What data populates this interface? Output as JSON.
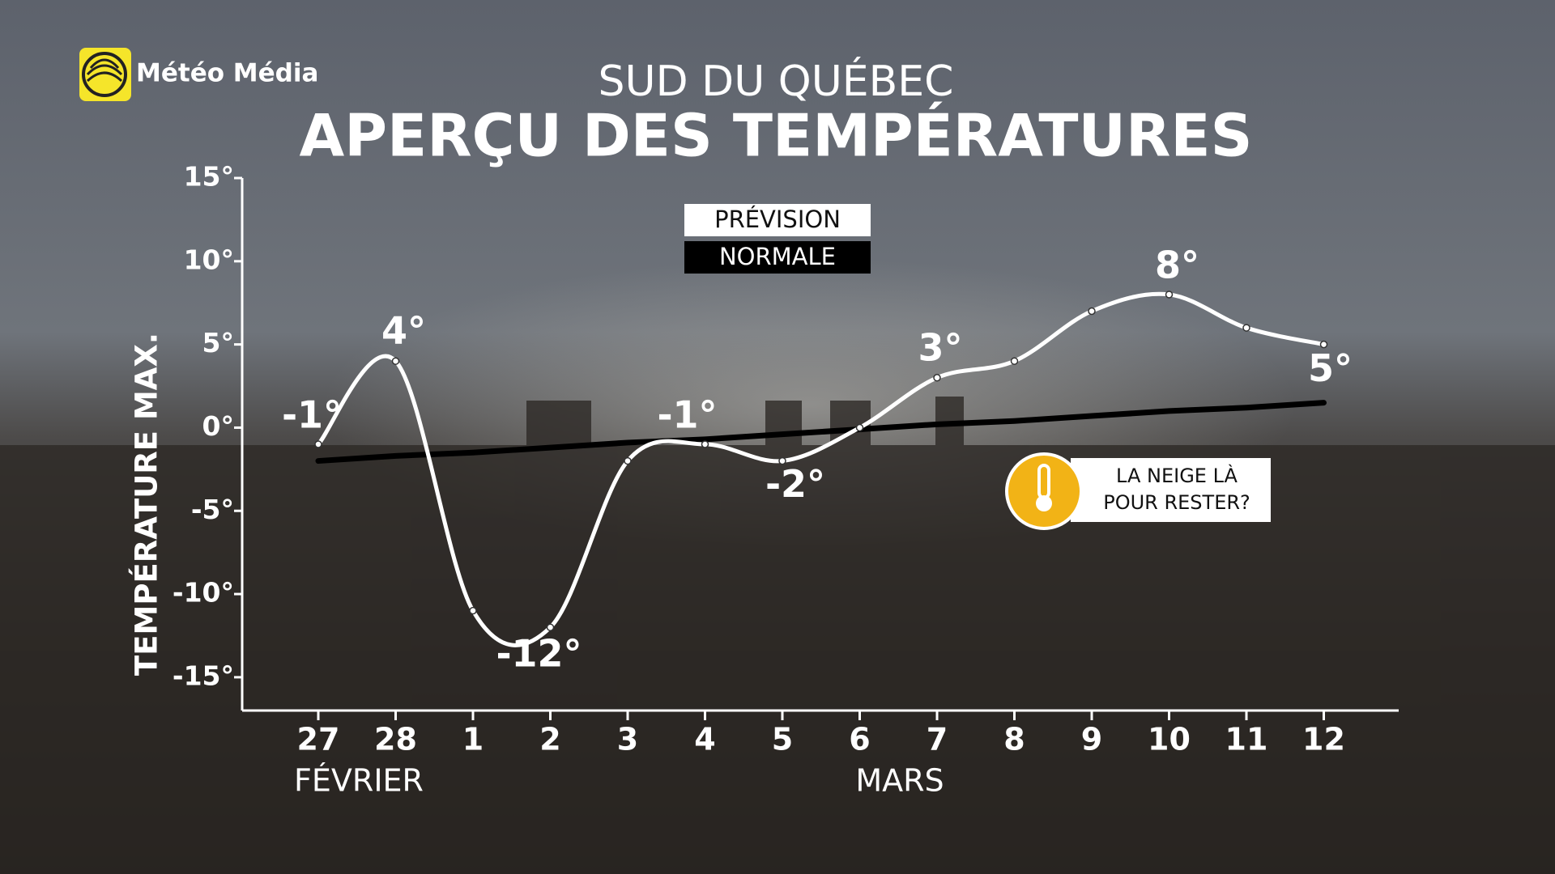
{
  "chart_data": {
    "type": "line",
    "brand": "Météo Média",
    "subtitle": "SUD DU QUÉBEC",
    "title": "APERÇU DES TEMPÉRATURES",
    "y_label": "TEMPÉRATURE MAX.",
    "categories": [
      "27",
      "28",
      "1",
      "2",
      "3",
      "4",
      "5",
      "6",
      "7",
      "8",
      "9",
      "10",
      "11",
      "12"
    ],
    "month_labels": [
      "FÉVRIER",
      "MARS"
    ],
    "series": [
      {
        "name": "PRÉVISION",
        "color": "#ffffff",
        "values": [
          -1,
          4,
          -11,
          -12,
          -2,
          -1,
          -2,
          0,
          3,
          4,
          7,
          8,
          6,
          5
        ],
        "value_labels": [
          "-1°",
          "4°",
          null,
          "-12°",
          null,
          "-1°",
          "-2°",
          null,
          "3°",
          null,
          null,
          "8°",
          null,
          "5°"
        ]
      },
      {
        "name": "NORMALE",
        "color": "#000000",
        "values": [
          -2,
          -1.7,
          -1.5,
          -1.2,
          -0.9,
          -0.7,
          -0.4,
          -0.1,
          0.2,
          0.4,
          0.7,
          1.0,
          1.2,
          1.5
        ]
      }
    ],
    "ylim": [
      -17,
      15
    ],
    "yticks": [
      {
        "value": 15,
        "label": "15°"
      },
      {
        "value": 10,
        "label": "10°"
      },
      {
        "value": 5,
        "label": "5°"
      },
      {
        "value": 0,
        "label": "0°"
      },
      {
        "value": -5,
        "label": "-5°"
      },
      {
        "value": -10,
        "label": "-10°"
      },
      {
        "value": -15,
        "label": "-15°"
      }
    ],
    "callout": [
      "LA NEIGE LÀ",
      "POUR RESTER?"
    ]
  }
}
